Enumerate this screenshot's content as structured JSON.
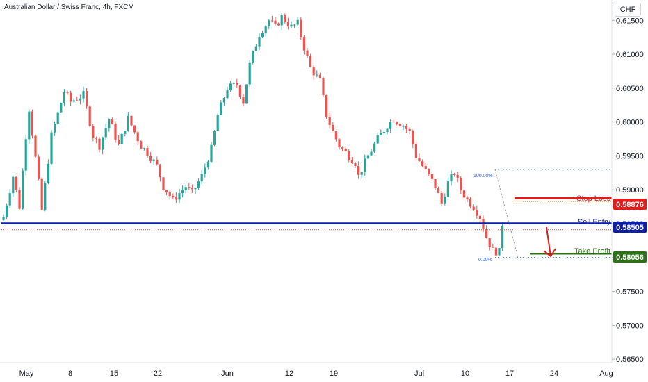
{
  "header": {
    "title": "Australian Dollar / Swiss Franc, 4h, FXCM",
    "currency": "CHF"
  },
  "chart_data": {
    "type": "candlestick",
    "ylim": [
      0.5645,
      0.618
    ],
    "y_ticks": [
      "0.61500",
      "0.61000",
      "0.60500",
      "0.60000",
      "0.59500",
      "0.59000",
      "0.58500",
      "0.58000",
      "0.57500",
      "0.57000",
      "0.56500"
    ],
    "x_ticks": [
      "May",
      "8",
      "15",
      "22",
      "Jun",
      "12",
      "19",
      "Jul",
      "10",
      "17",
      "24",
      "Aug"
    ],
    "colors": {
      "up": "#26a69a",
      "down": "#ef5350"
    },
    "close_path": [
      [
        0,
        0.586
      ],
      [
        3,
        0.592
      ],
      [
        5,
        0.5875
      ],
      [
        7,
        0.598
      ],
      [
        8,
        0.602
      ],
      [
        11,
        0.591
      ],
      [
        12,
        0.587
      ],
      [
        15,
        0.598
      ],
      [
        19,
        0.6045
      ],
      [
        21,
        0.603
      ],
      [
        25,
        0.604
      ],
      [
        28,
        0.598
      ],
      [
        30,
        0.5965
      ],
      [
        33,
        0.6005
      ],
      [
        36,
        0.5965
      ],
      [
        39,
        0.6005
      ],
      [
        41,
        0.5985
      ],
      [
        43,
        0.5965
      ],
      [
        45,
        0.5955
      ],
      [
        48,
        0.5935
      ],
      [
        50,
        0.5905
      ],
      [
        53,
        0.5885
      ],
      [
        57,
        0.5905
      ],
      [
        59,
        0.5895
      ],
      [
        62,
        0.592
      ],
      [
        65,
        0.596
      ],
      [
        67,
        0.601
      ],
      [
        70,
        0.605
      ],
      [
        73,
        0.6055
      ],
      [
        75,
        0.603
      ],
      [
        77,
        0.6085
      ],
      [
        80,
        0.613
      ],
      [
        83,
        0.615
      ],
      [
        85,
        0.614
      ],
      [
        87,
        0.6155
      ],
      [
        90,
        0.614
      ],
      [
        92,
        0.6145
      ],
      [
        94,
        0.611
      ],
      [
        96,
        0.608
      ],
      [
        99,
        0.606
      ],
      [
        101,
        0.601
      ],
      [
        103,
        0.5985
      ],
      [
        105,
        0.5965
      ],
      [
        107,
        0.5955
      ],
      [
        110,
        0.594
      ],
      [
        111,
        0.592
      ],
      [
        114,
        0.595
      ],
      [
        117,
        0.5975
      ],
      [
        120,
        0.5995
      ],
      [
        122,
        0.6005
      ],
      [
        125,
        0.5995
      ],
      [
        127,
        0.5985
      ],
      [
        129,
        0.595
      ],
      [
        131,
        0.5935
      ],
      [
        133,
        0.592
      ],
      [
        135,
        0.5905
      ],
      [
        137,
        0.588
      ],
      [
        139,
        0.591
      ],
      [
        141,
        0.5925
      ],
      [
        143,
        0.59
      ],
      [
        145,
        0.5885
      ],
      [
        147,
        0.5875
      ],
      [
        149,
        0.586
      ],
      [
        151,
        0.583
      ],
      [
        153,
        0.581
      ],
      [
        155,
        0.5808
      ],
      [
        156,
        0.585
      ]
    ],
    "annotations": {
      "stop_loss": {
        "label": "Stop Loss",
        "value": "0.58876",
        "color": "#e21b1b"
      },
      "sell_entry": {
        "label": "Sell Entry",
        "value": "0.58505",
        "color": "#0d1ea8"
      },
      "take_profit": {
        "label": "Take Profit",
        "value": "0.58056",
        "color": "#2e6f1a"
      },
      "fib_100": "100.00%",
      "fib_0": "0.00%"
    }
  }
}
